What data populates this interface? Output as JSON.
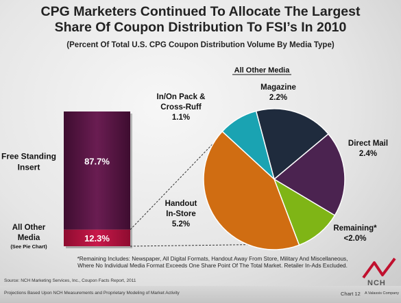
{
  "title_line1": "CPG Marketers Continued To Allocate The Largest",
  "title_line2": "Share Of Coupon Distribution To FSI’s In 2010",
  "subtitle": "(Percent Of Total U.S. CPG Coupon Distribution Volume By Media Type)",
  "pie_heading": "All Other Media",
  "footnote_line1": "*Remaining Includes: Newspaper, All Digital Formats, Handout Away From Store, Military And Miscellaneous,",
  "footnote_line2": "Where No Individual Media Format Exceeds One Share Point Of The Total Market. Retailer In-Ads Excluded.",
  "source": "Source: NCH Marketing Services, Inc., Coupon Facts Report, 2011",
  "projections": "Projections Based Upon NCH Measurements and Proprietary Modeling of Market Activity",
  "chart_number": "Chart 12",
  "company": "A Valassis Company",
  "logo_text": "NCH",
  "colors": {
    "fsi": "#5a1745",
    "other": "#b3123f",
    "magazine": "#1f2b3d",
    "direct_mail": "#4b2350",
    "remaining": "#7fb516",
    "handout": "#d06d12",
    "in_on_pack": "#1aa3b2"
  },
  "chart_data": [
    {
      "type": "bar",
      "stacked": true,
      "categories": [
        "Free Standing Insert",
        "All Other Media"
      ],
      "category_lines": [
        [
          "Free Standing",
          "Insert"
        ],
        [
          "All Other",
          "Media"
        ]
      ],
      "category_note": "(See Pie Chart)",
      "values": [
        87.7,
        12.3
      ],
      "value_labels": [
        "87.7%",
        "12.3%"
      ],
      "ylim": [
        0,
        100
      ]
    },
    {
      "type": "pie",
      "title": "All Other Media",
      "slices": [
        {
          "name": "Magazine",
          "lines": [
            "Magazine"
          ],
          "value": 2.2,
          "label": "2.2%"
        },
        {
          "name": "Direct Mail",
          "lines": [
            "Direct Mail"
          ],
          "value": 2.4,
          "label": "2.4%"
        },
        {
          "name": "Remaining*",
          "lines": [
            "Remaining*"
          ],
          "value": 1.3,
          "label": "<2.0%"
        },
        {
          "name": "Handout In-Store",
          "lines": [
            "Handout",
            "In-Store"
          ],
          "value": 5.2,
          "label": "5.2%"
        },
        {
          "name": "In/On Pack & Cross-Ruff",
          "lines": [
            "In/On Pack &",
            "Cross-Ruff"
          ],
          "value": 1.1,
          "label": "1.1%"
        }
      ]
    }
  ]
}
